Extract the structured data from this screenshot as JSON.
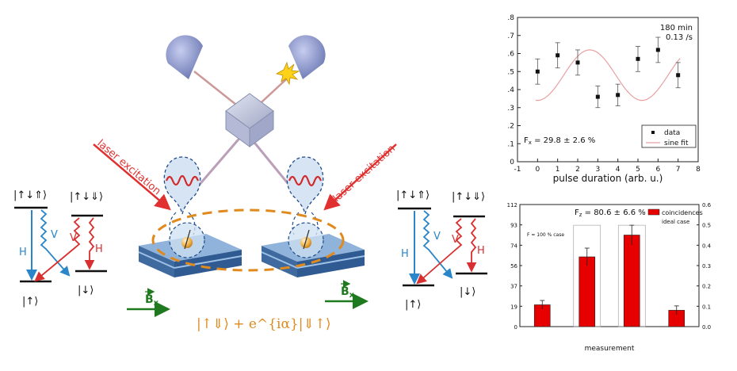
{
  "colors": {
    "excitation": "#e03030",
    "h_transition": "#2a86c8",
    "v_transition": "#d83030",
    "field": "#1f7a1f",
    "state": "#e08a1e",
    "chart_bar": "#e60000",
    "fit": "#e8a0a0",
    "detector": "#7f8cc4",
    "substrate_top": "#7fa6d0",
    "substrate_layer": "#4c76ac"
  },
  "diagram": {
    "laser_left": "laser excitation",
    "laser_right": "laser excitation",
    "field_label": "B",
    "field_subscript": "x",
    "entangled_state": "|↑⇓⟩ + e^{iα}|⇓↑⟩",
    "level_left": {
      "top_a": "|↑↓⇑⟩",
      "top_b": "|↑↓⇓⟩",
      "bottom_a": "|↑⟩",
      "bottom_b": "|↓⟩",
      "h": "H",
      "v1": "V",
      "v2": "V",
      "h2": "H"
    },
    "level_right": {
      "top_a": "|↑↓⇑⟩",
      "top_b": "|↑↓⇓⟩",
      "bottom_a": "|↑⟩",
      "bottom_b": "|↓⟩",
      "h": "H",
      "v1": "V",
      "v2": "V",
      "h2": "H"
    }
  },
  "chart_data": [
    {
      "type": "scatter",
      "xlabel": "pulse duration (arb. u.)",
      "ylabel": "",
      "xlim": [
        -1,
        8
      ],
      "ylim": [
        0,
        0.8
      ],
      "xticks": [
        "-1",
        "0",
        "1",
        "2",
        "3",
        "4",
        "5",
        "6",
        "7",
        "8"
      ],
      "yticks": [
        "0",
        ".1",
        ".2",
        ".3",
        ".4",
        ".5",
        ".6",
        ".7",
        ".8"
      ],
      "top_right_text": [
        "180 min",
        "0.13 /s"
      ],
      "fidelity": "F",
      "fidelity_sub": "x",
      "fidelity_value": " = 29.8 ± 2.6 %",
      "legend": [
        {
          "name": "data"
        },
        {
          "name": "sine fit"
        }
      ],
      "series": [
        {
          "name": "data",
          "x": [
            0,
            1,
            2,
            3,
            4,
            5,
            6,
            7
          ],
          "y": [
            0.5,
            0.59,
            0.55,
            0.36,
            0.37,
            0.57,
            0.62,
            0.48
          ],
          "err": [
            0.07,
            0.07,
            0.07,
            0.06,
            0.06,
            0.07,
            0.07,
            0.07
          ]
        },
        {
          "name": "sine fit",
          "model": {
            "offset": 0.48,
            "amplitude": 0.14,
            "period": 5.2,
            "phase_x": 1.3
          }
        }
      ]
    },
    {
      "type": "bar",
      "xlabel": "measurement",
      "ylabel": "",
      "left_ylim": [
        0,
        112
      ],
      "right_ylim": [
        0,
        0.6
      ],
      "left_ticks": [
        "0",
        "19",
        "37",
        "56",
        "74",
        "93",
        "112"
      ],
      "right_ticks": [
        "0.0",
        "0.1",
        "0.2",
        "0.3",
        "0.4",
        "0.5",
        "0.6"
      ],
      "fidelity": "F",
      "fidelity_sub": "z",
      "fidelity_value": " = 80.6 ± 6.6 %",
      "ideal_note": "F = 100 % case",
      "legend": [
        {
          "name": "coincidences"
        },
        {
          "name": "ideal case"
        }
      ],
      "series": [
        {
          "name": "coincidences",
          "values": [
            20,
            64,
            84,
            15
          ],
          "err": [
            4,
            8,
            9,
            4
          ]
        },
        {
          "name": "ideal case",
          "values": [
            0,
            93,
            93,
            0
          ]
        }
      ]
    }
  ]
}
